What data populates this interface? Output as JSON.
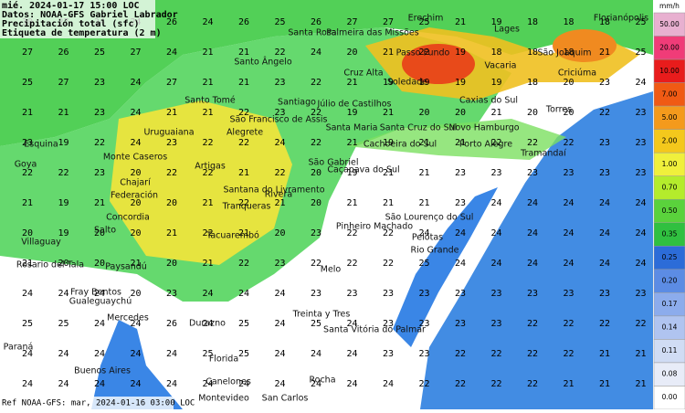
{
  "header": {
    "lines": [
      "mié. 2024-01-17 15:00 LOC",
      "Datos: NOAA-GFS Gabriel Labrador",
      "Precipitación total (sfc)",
      "Etiqueta de temperatura (2 m)"
    ],
    "footer": "Ref NOAA-GFS: mar, 2024-01-16 03:00 LOC"
  },
  "legend": {
    "unit": "mm/h",
    "levels": [
      {
        "value": 50,
        "label": "50.00",
        "color": "#e8b0d0"
      },
      {
        "value": 20,
        "label": "20.00",
        "color": "#f03c78"
      },
      {
        "value": 10,
        "label": "10.00",
        "color": "#e81c1c"
      },
      {
        "value": 7,
        "label": "7.00",
        "color": "#f05a14"
      },
      {
        "value": 5,
        "label": "5.00",
        "color": "#f49a1c"
      },
      {
        "value": 2,
        "label": "2.00",
        "color": "#f4c81c"
      },
      {
        "value": 1,
        "label": "1.00",
        "color": "#f0f03c"
      },
      {
        "value": 0.7,
        "label": "0.70",
        "color": "#b4ec2c"
      },
      {
        "value": 0.5,
        "label": "0.50",
        "color": "#5ad23c"
      },
      {
        "value": 0.35,
        "label": "0.35",
        "color": "#30c040"
      },
      {
        "value": 0.25,
        "label": "0.25",
        "color": "#2c6cd8"
      },
      {
        "value": 0.2,
        "label": "0.20",
        "color": "#5c8ce4"
      },
      {
        "value": 0.17,
        "label": "0.17",
        "color": "#8cacec"
      },
      {
        "value": 0.14,
        "label": "0.14",
        "color": "#b0c4f0"
      },
      {
        "value": 0.11,
        "label": "0.11",
        "color": "#d0dcf4"
      },
      {
        "value": 0.08,
        "label": "0.08",
        "color": "#e8ecf8"
      },
      {
        "value": 0,
        "label": "0.00",
        "color": "#ffffff"
      }
    ]
  },
  "places": [
    "Santa Rosa",
    "Palmeira das Missões",
    "Lages",
    "Passo Fundo",
    "Erechim",
    "Vacaria",
    "São Joaquim",
    "Criciúma",
    "Cruz Alta",
    "Soledade",
    "Caxias do Sul",
    "Santo Ângelo",
    "Santiago",
    "Júlio de Castilhos",
    "São Francisco de Assis",
    "Santa Maria",
    "Santa Cruz do Sul",
    "Novo Hamburgo",
    "Porto Alegre",
    "Cachoeira do Sul",
    "Uruguaiana",
    "Alegrete",
    "Monte Caseros",
    "Artigas",
    "São Gabriel",
    "Caçapava do Sul",
    "Santana do Livramento",
    "Rivera",
    "Tranqueras",
    "Federación",
    "Concordia",
    "Salto",
    "Tacuarembó",
    "Pinheiro Machado",
    "São Lourenço do Sul",
    "Pelotas",
    "Rio Grande",
    "Melo",
    "Paysandú",
    "Fray Bentos",
    "Rocha",
    "Montevideo",
    "Florida",
    "Durazno",
    "Treinta y Tres",
    "Mercedes",
    "Gualeguaychú",
    "Buenos Aires",
    "Paraná",
    "Rosario del Tala",
    "Villaguay",
    "Chajarí",
    "Esquina",
    "Goya",
    "Santo Tomé",
    "Florianópolis",
    "Santa Vitória do Palmar",
    "Canelones",
    "San Carlos",
    "Tramandaí",
    "Torres"
  ],
  "temperatures": [
    [
      30,
      27,
      24,
      24,
      26,
      24,
      26,
      25,
      26,
      27,
      27,
      25,
      21,
      19,
      18,
      18,
      18,
      25
    ],
    [
      27,
      26,
      25,
      27,
      24,
      21,
      21,
      22,
      24,
      20,
      21,
      22,
      19,
      18,
      18,
      18,
      21,
      25
    ],
    [
      25,
      27,
      23,
      24,
      27,
      21,
      21,
      23,
      22,
      21,
      19,
      19,
      19,
      19,
      18,
      20,
      23,
      24
    ],
    [
      21,
      21,
      23,
      24,
      21,
      21,
      22,
      23,
      22,
      19,
      21,
      20,
      20,
      21,
      20,
      20,
      22,
      23
    ],
    [
      23,
      19,
      22,
      24,
      23,
      22,
      22,
      24,
      22,
      21,
      19,
      21,
      21,
      22,
      22,
      22,
      23,
      23
    ],
    [
      22,
      22,
      23,
      20,
      22,
      22,
      21,
      22,
      20,
      19,
      21,
      21,
      23,
      23,
      23,
      23,
      23,
      23
    ],
    [
      21,
      19,
      21,
      20,
      20,
      21,
      22,
      21,
      20,
      21,
      21,
      21,
      23,
      24,
      24,
      24,
      24,
      24
    ],
    [
      20,
      19,
      20,
      20,
      21,
      22,
      21,
      20,
      23,
      22,
      22,
      24,
      24,
      24,
      24,
      24,
      24,
      24
    ],
    [
      21,
      20,
      20,
      21,
      20,
      21,
      22,
      23,
      22,
      22,
      22,
      25,
      24,
      24,
      24,
      24,
      24,
      24
    ],
    [
      24,
      24,
      24,
      20,
      23,
      24,
      24,
      24,
      23,
      23,
      23,
      23,
      23,
      23,
      23,
      23,
      23,
      23
    ],
    [
      25,
      25,
      24,
      24,
      26,
      24,
      25,
      24,
      25,
      24,
      23,
      23,
      23,
      23,
      22,
      22,
      22,
      22
    ],
    [
      24,
      24,
      24,
      24,
      24,
      25,
      25,
      24,
      24,
      24,
      23,
      23,
      22,
      22,
      22,
      22,
      21,
      21
    ],
    [
      24,
      24,
      24,
      24,
      24,
      24,
      24,
      24,
      24,
      24,
      24,
      22,
      22,
      22,
      22,
      21,
      21,
      21
    ]
  ]
}
